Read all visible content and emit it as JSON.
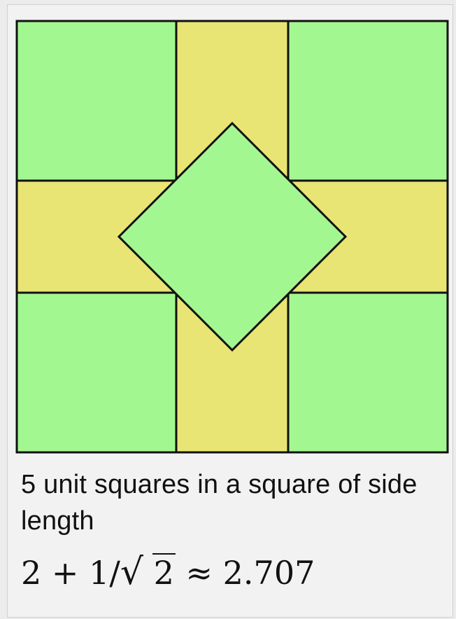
{
  "colors": {
    "green": "#a3f791",
    "yellow": "#e8e574",
    "stroke": "#111111",
    "background": "#f2f2f2"
  },
  "diagram": {
    "outer_square_side": 2.707,
    "unit_squares": 5
  },
  "caption": {
    "text": "5 unit squares in a square of side length"
  },
  "formula": {
    "lead": "2 + 1/",
    "sqrt_sign": "√",
    "radicand": "2",
    "tail": " ≈ 2.707"
  }
}
